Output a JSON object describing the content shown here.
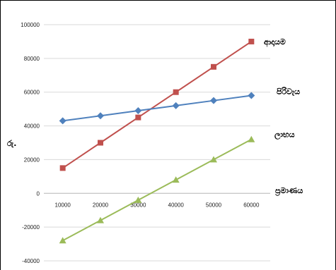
{
  "chart_data": {
    "type": "line",
    "x": [
      10000,
      20000,
      30000,
      40000,
      50000,
      60000
    ],
    "ylim": [
      -40000,
      100000
    ],
    "y_ticks": [
      -40000,
      -20000,
      0,
      20000,
      40000,
      60000,
      80000,
      100000
    ],
    "y_tick_labels": [
      "-40000",
      "-20000",
      "0",
      "20000",
      "40000",
      "60000",
      "80000",
      "100000"
    ],
    "x_tick_labels": [
      "10000",
      "20000",
      "30000",
      "40000",
      "50000",
      "60000"
    ],
    "ylabel": "රු.",
    "xlabel": "ප්‍රමාණය",
    "grid": true,
    "legend": "inline-right",
    "series": [
      {
        "name": "ආදායම",
        "values": [
          15000,
          30000,
          45000,
          60000,
          75000,
          90000
        ],
        "color": "#c0504d",
        "marker": "square"
      },
      {
        "name": "පිරිවැය",
        "values": [
          43000,
          46000,
          49000,
          52000,
          55000,
          58000
        ],
        "color": "#4f81bd",
        "marker": "diamond"
      },
      {
        "name": "ලාභය",
        "values": [
          -28000,
          -16000,
          -4000,
          8000,
          20000,
          32000
        ],
        "color": "#9bbb59",
        "marker": "triangle"
      }
    ]
  }
}
